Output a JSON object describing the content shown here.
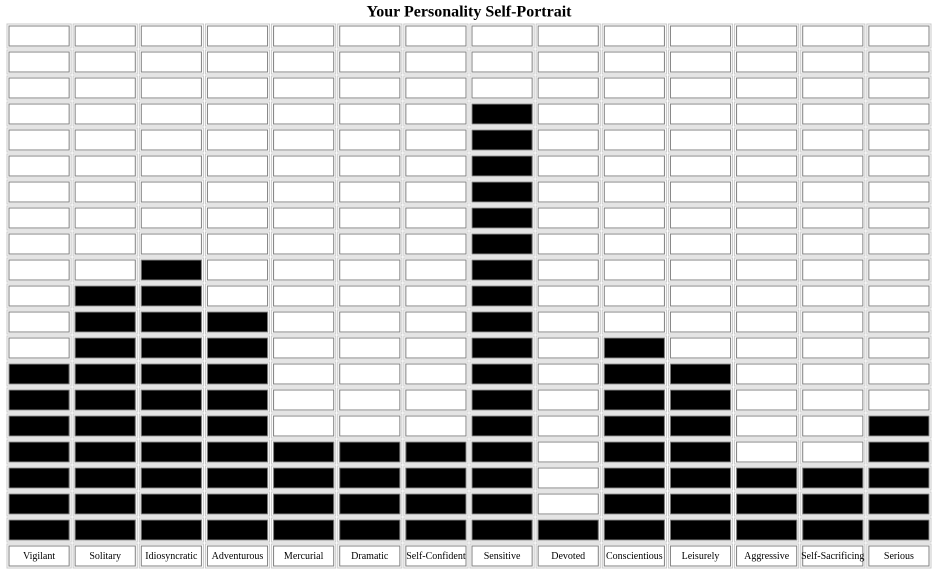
{
  "chart_data": {
    "type": "bar",
    "title": "Your Personality Self-Portrait",
    "categories": [
      "Vigilant",
      "Solitary",
      "Idiosyncratic",
      "Adventurous",
      "Mercurial",
      "Dramatic",
      "Self-Confident",
      "Sensitive",
      "Devoted",
      "Conscientious",
      "Leisurely",
      "Aggressive",
      "Self-Sacrificing",
      "Serious"
    ],
    "values": [
      7,
      10,
      11,
      9,
      4,
      4,
      4,
      17,
      1,
      8,
      7,
      3,
      3,
      5
    ],
    "color": "#000000",
    "ylim": [
      0,
      20
    ]
  }
}
